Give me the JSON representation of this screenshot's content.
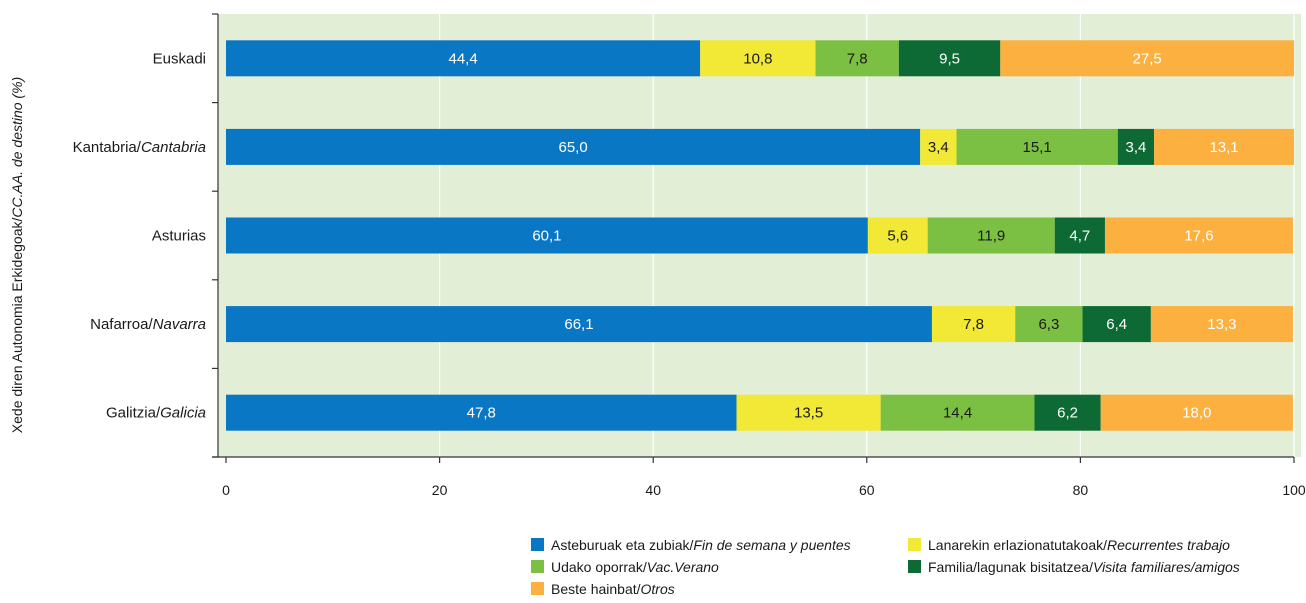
{
  "chart_data": {
    "type": "bar",
    "orientation": "horizontal",
    "stacked": true,
    "ylabel": {
      "main": "Xede diren Autonomia Erkidegoak/",
      "italic": "CC.AA. de destino (%)"
    },
    "xlim": [
      0,
      100
    ],
    "xticks": [
      "0",
      "20",
      "40",
      "60",
      "80",
      "100"
    ],
    "grid": true,
    "legend_position": "bottom",
    "categories": [
      {
        "main": "Euskadi",
        "italic": ""
      },
      {
        "main": "Kantabria/",
        "italic": "Cantabria"
      },
      {
        "main": "Asturias",
        "italic": ""
      },
      {
        "main": "Nafarroa/",
        "italic": "Navarra"
      },
      {
        "main": "Galitzia/",
        "italic": "Galicia"
      }
    ],
    "series": [
      {
        "name": "Asteburuak eta zubiak/",
        "name_italic": "Fin de semana y puentes",
        "color": "#0a77c4",
        "label_color": "#ffffff",
        "values": [
          44.4,
          65.0,
          60.1,
          66.1,
          47.8
        ],
        "labels": [
          "44,4",
          "65,0",
          "60,1",
          "66,1",
          "47,8"
        ]
      },
      {
        "name": "Lanarekin erlazionatutakoak/",
        "name_italic": "Recurrentes trabajo",
        "color": "#f2e836",
        "label_color": "#1a1a1a",
        "values": [
          10.8,
          3.4,
          5.6,
          7.8,
          13.5
        ],
        "labels": [
          "10,8",
          "3,4",
          "5,6",
          "7,8",
          "13,5"
        ]
      },
      {
        "name": "Udako oporrak/",
        "name_italic": "Vac.Verano",
        "color": "#7bc043",
        "label_color": "#1a1a1a",
        "values": [
          7.8,
          15.1,
          11.9,
          6.3,
          14.4
        ],
        "labels": [
          "7,8",
          "15,1",
          "11,9",
          "6,3",
          "14,4"
        ]
      },
      {
        "name": "Familia/lagunak bisitatzea/",
        "name_italic": "Visita familiares/amigos",
        "color": "#0d6a34",
        "label_color": "#ffffff",
        "values": [
          9.5,
          3.4,
          4.7,
          6.4,
          6.2
        ],
        "labels": [
          "9,5",
          "3,4",
          "4,7",
          "6,4",
          "6,2"
        ]
      },
      {
        "name": "Beste hainbat/",
        "name_italic": "Otros",
        "color": "#fbb040",
        "label_color": "#ffffff",
        "values": [
          27.5,
          13.1,
          17.6,
          13.3,
          18.0
        ],
        "labels": [
          "27,5",
          "13,1",
          "17,6",
          "13,3",
          "18,0"
        ]
      }
    ],
    "plot_background": "#e3eed6"
  },
  "legend": {
    "items": [
      {
        "main": "Asteburuak eta zubiak/",
        "italic": "Fin de semana y puentes",
        "color": "#0a77c4"
      },
      {
        "main": "Lanarekin erlazionatutakoak/",
        "italic": "Recurrentes trabajo",
        "color": "#f2e836"
      },
      {
        "main": "Udako oporrak/",
        "italic": "Vac.Verano",
        "color": "#7bc043"
      },
      {
        "main": "Familia/lagunak bisitatzea/",
        "italic": "Visita familiares/amigos",
        "color": "#0d6a34"
      },
      {
        "main": "Beste hainbat/",
        "italic": "Otros",
        "color": "#fbb040"
      }
    ]
  }
}
